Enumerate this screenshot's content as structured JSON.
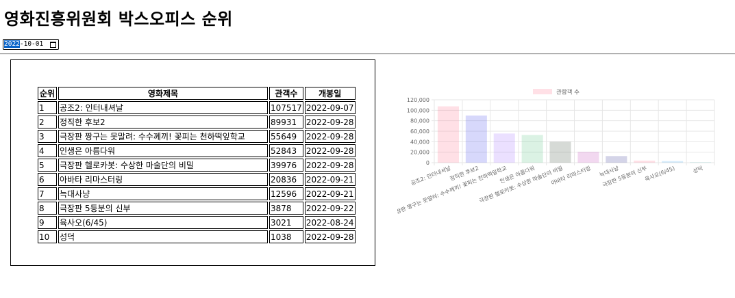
{
  "page": {
    "title": "영화진흥위원회 박스오피스 순위"
  },
  "date_picker": {
    "value_selected_part": "2022",
    "value_rest": "-10-01",
    "icon": "calendar-icon"
  },
  "table": {
    "headers": [
      "순위",
      "영화제목",
      "관객수",
      "개봉일"
    ],
    "rows": [
      [
        "1",
        "공조2: 인터내셔날",
        "107517",
        "2022-09-07"
      ],
      [
        "2",
        "정직한 후보2",
        "89931",
        "2022-09-28"
      ],
      [
        "3",
        "극장판 짱구는 못말려: 수수께끼! 꽃피는 천하떡잎학교",
        "55649",
        "2022-09-28"
      ],
      [
        "4",
        "인생은 아름다워",
        "52843",
        "2022-09-28"
      ],
      [
        "5",
        "극장판 헬로카봇: 수상한 마술단의 비밀",
        "39976",
        "2022-09-28"
      ],
      [
        "6",
        "아바타 리마스터링",
        "20836",
        "2022-09-21"
      ],
      [
        "7",
        "늑대사냥",
        "12596",
        "2022-09-21"
      ],
      [
        "8",
        "극장판 5등분의 신부",
        "3878",
        "2022-09-22"
      ],
      [
        "9",
        "육사오(6/45)",
        "3021",
        "2022-08-24"
      ],
      [
        "10",
        "성덕",
        "1038",
        "2022-09-28"
      ]
    ]
  },
  "chart_data": {
    "type": "bar",
    "categories": [
      "공조2: 인터내셔날",
      "정직한 후보2",
      "극장판 짱구는 못말려: 수수께끼! 꽃피는 천하떡잎학교",
      "인생은 아름다워",
      "극장판 헬로카봇: 수상한 마술단의 비밀",
      "아바타 리마스터링",
      "늑대사냥",
      "극장판 5등분의 신부",
      "육사오(6/45)",
      "성덕"
    ],
    "series": [
      {
        "name": "관람객 수",
        "values": [
          107517,
          89931,
          55649,
          52843,
          39976,
          20836,
          12596,
          3878,
          3021,
          1038
        ]
      }
    ],
    "y_ticks": [
      "0",
      "20,000",
      "40,000",
      "60,000",
      "80,000",
      "100,000",
      "120,000"
    ],
    "ylim": [
      0,
      120000
    ],
    "grid": true,
    "legend_position": "top",
    "bar_colors": [
      "#ffb1c1",
      "#9ad0f5",
      "#ffcf9f",
      "#a5dfdf",
      "#ccb2ff",
      "#c9cbcf",
      "#ffb1c1",
      "#9ad0f5",
      "#ffcf9f",
      "#a5dfdf"
    ],
    "bar_fills": [
      "rgba(255,99,132,0.2)",
      "rgba(54,62,235,0.2)",
      "rgba(153,102,255,0.2)",
      "rgba(75,192,120,0.2)",
      "rgba(50,70,50,0.2)",
      "rgba(190,60,180,0.2)",
      "rgba(40,40,140,0.2)",
      "rgba(255,99,132,0.2)",
      "rgba(54,162,235,0.2)",
      "rgba(75,192,192,0.2)"
    ],
    "legend_color": "rgba(255,99,132,0.2)"
  }
}
